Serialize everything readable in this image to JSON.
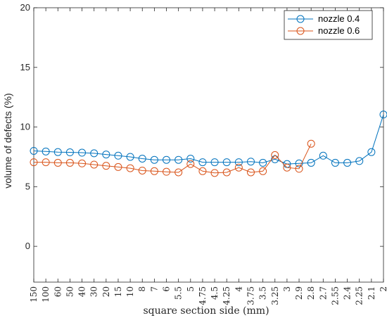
{
  "chart_data": {
    "type": "line",
    "title": "",
    "xlabel": "square section side (mm)",
    "ylabel": "volume of defects (%)",
    "categories": [
      "150",
      "100",
      "60",
      "50",
      "40",
      "30",
      "20",
      "15",
      "10",
      "8",
      "7",
      "6",
      "5.5",
      "5",
      "4.75",
      "4.5",
      "4.25",
      "4",
      "3.75",
      "3.5",
      "3.25",
      "3",
      "2.9",
      "2.8",
      "2.7",
      "2.55",
      "2.4",
      "2.25",
      "2.1",
      "2"
    ],
    "ylim": [
      -3,
      20
    ],
    "yticks": [
      "0",
      "5",
      "10",
      "15",
      "20"
    ],
    "legend_position": "top-right",
    "grid": false,
    "series": [
      {
        "name": "nozzle 0.4",
        "color": "#0072BD",
        "values": [
          8.0,
          7.95,
          7.9,
          7.88,
          7.85,
          7.8,
          7.7,
          7.6,
          7.5,
          7.35,
          7.25,
          7.25,
          7.25,
          7.35,
          7.05,
          7.05,
          7.05,
          7.05,
          7.1,
          7.0,
          7.3,
          6.9,
          6.95,
          7.0,
          7.6,
          7.0,
          7.0,
          7.15,
          7.9,
          11.05
        ]
      },
      {
        "name": "nozzle 0.6",
        "color": "#D95319",
        "values": [
          7.05,
          7.05,
          7.0,
          7.0,
          6.95,
          6.85,
          6.75,
          6.65,
          6.55,
          6.35,
          6.3,
          6.25,
          6.2,
          6.9,
          6.3,
          6.15,
          6.2,
          6.6,
          6.2,
          6.3,
          7.65,
          6.6,
          6.5,
          8.6,
          null,
          null,
          null,
          null,
          null,
          null
        ]
      }
    ]
  }
}
